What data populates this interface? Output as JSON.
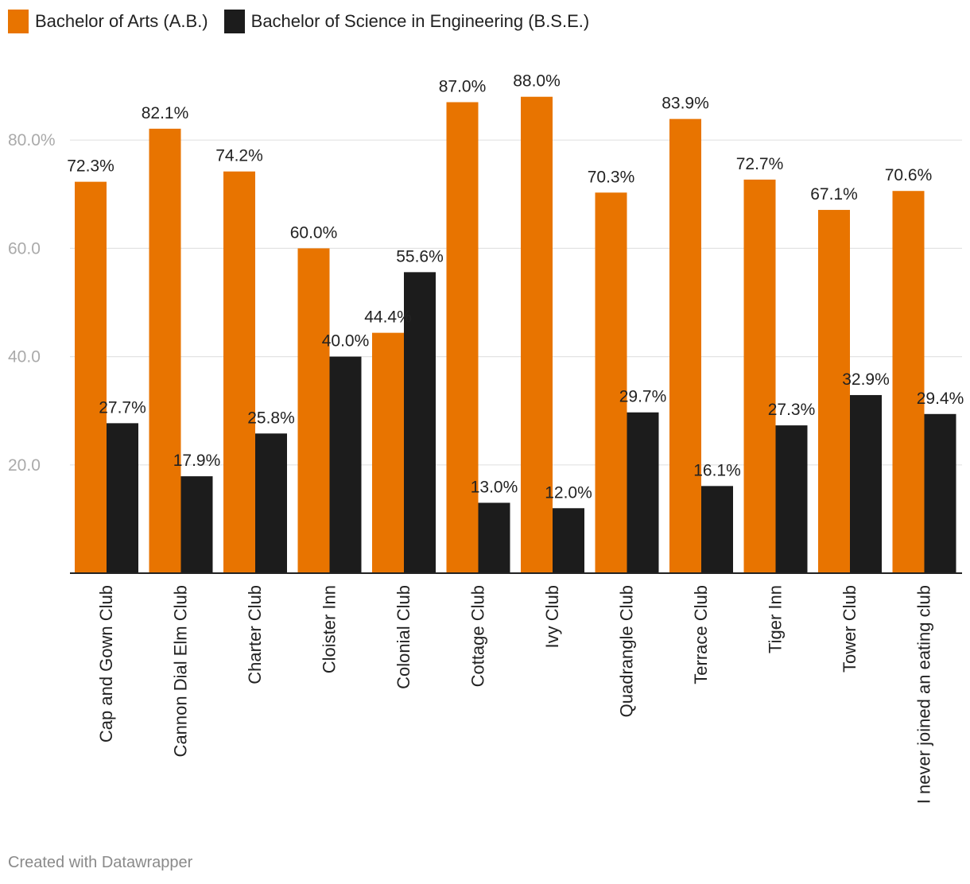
{
  "chart_data": {
    "type": "bar",
    "categories": [
      "Cap and Gown Club",
      "Cannon Dial Elm Club",
      "Charter Club",
      "Cloister Inn",
      "Colonial Club",
      "Cottage Club",
      "Ivy Club",
      "Quadrangle Club",
      "Terrace Club",
      "Tiger Inn",
      "Tower Club",
      "I never joined an eating club"
    ],
    "series": [
      {
        "name": "Bachelor of Arts (A.B.)",
        "color": "#e87400",
        "values": [
          72.3,
          82.1,
          74.2,
          60.0,
          44.4,
          87.0,
          88.0,
          70.3,
          83.9,
          72.7,
          67.1,
          70.6
        ],
        "labels": [
          "72.3%",
          "82.1%",
          "74.2%",
          "60.0%",
          "44.4%",
          "87.0%",
          "88.0%",
          "70.3%",
          "83.9%",
          "72.7%",
          "67.1%",
          "70.6%"
        ]
      },
      {
        "name": "Bachelor of Science in Engineering (B.S.E.)",
        "color": "#1c1c1c",
        "values": [
          27.7,
          17.9,
          25.8,
          40.0,
          55.6,
          13.0,
          12.0,
          29.7,
          16.1,
          27.3,
          32.9,
          29.4
        ],
        "labels": [
          "27.7%",
          "17.9%",
          "25.8%",
          "40.0%",
          "55.6%",
          "13.0%",
          "12.0%",
          "29.7%",
          "16.1%",
          "27.3%",
          "32.9%",
          "29.4%"
        ]
      }
    ],
    "yticks": [
      20,
      40,
      60,
      80
    ],
    "ytick_labels": [
      "20.0",
      "40.0",
      "60.0",
      "80.0%"
    ],
    "ylim": [
      0,
      100
    ],
    "grid": true,
    "legend": "top-left",
    "title": "",
    "xlabel": "",
    "ylabel": ""
  },
  "footer": {
    "credit": "Created with Datawrapper"
  }
}
